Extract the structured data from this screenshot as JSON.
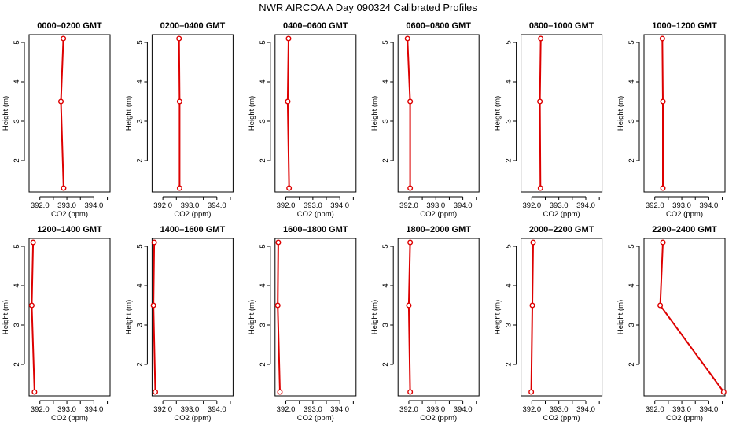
{
  "figure": {
    "title": "NWR AIRCOA A  Day 090324  Calibrated Profiles"
  },
  "colors": {
    "series": "#dd0000",
    "axis": "#000000"
  },
  "chart_data": [
    {
      "type": "line",
      "title": "0000–0200 GMT",
      "xlabel": "CO2 (ppm)",
      "ylabel": "Height (m)",
      "x": [
        392.87,
        392.78,
        392.88
      ],
      "y": [
        5.1,
        3.5,
        1.3
      ],
      "xlim": [
        391.6,
        394.6
      ],
      "ylim": [
        1.2,
        5.2
      ],
      "xticks": [
        392.0,
        393.0,
        394.0
      ],
      "xtick_labels": [
        "392.0",
        "393.0",
        "394.0"
      ],
      "yticks": [
        2,
        3,
        4,
        5
      ],
      "ytick_labels": [
        "2",
        "3",
        "4",
        "5"
      ]
    },
    {
      "type": "line",
      "title": "0200–0400 GMT",
      "xlabel": "CO2 (ppm)",
      "ylabel": "Height (m)",
      "x": [
        392.6,
        392.62,
        392.62
      ],
      "y": [
        5.1,
        3.5,
        1.3
      ],
      "xlim": [
        391.6,
        394.6
      ],
      "ylim": [
        1.2,
        5.2
      ],
      "xticks": [
        392.0,
        393.0,
        394.0
      ],
      "xtick_labels": [
        "392.0",
        "393.0",
        "394.0"
      ],
      "yticks": [
        2,
        3,
        4,
        5
      ],
      "ytick_labels": [
        "2",
        "3",
        "4",
        "5"
      ]
    },
    {
      "type": "line",
      "title": "0400–0600 GMT",
      "xlabel": "CO2 (ppm)",
      "ylabel": "Height (m)",
      "x": [
        392.1,
        392.07,
        392.12
      ],
      "y": [
        5.1,
        3.5,
        1.3
      ],
      "xlim": [
        391.6,
        394.6
      ],
      "ylim": [
        1.2,
        5.2
      ],
      "xticks": [
        392.0,
        393.0,
        394.0
      ],
      "xtick_labels": [
        "392.0",
        "393.0",
        "394.0"
      ],
      "yticks": [
        2,
        3,
        4,
        5
      ],
      "ytick_labels": [
        "2",
        "3",
        "4",
        "5"
      ]
    },
    {
      "type": "line",
      "title": "0600–0800 GMT",
      "xlabel": "CO2 (ppm)",
      "ylabel": "Height (m)",
      "x": [
        391.95,
        392.05,
        392.05
      ],
      "y": [
        5.1,
        3.5,
        1.3
      ],
      "xlim": [
        391.6,
        394.6
      ],
      "ylim": [
        1.2,
        5.2
      ],
      "xticks": [
        392.0,
        393.0,
        394.0
      ],
      "xtick_labels": [
        "392.0",
        "393.0",
        "394.0"
      ],
      "yticks": [
        2,
        3,
        4,
        5
      ],
      "ytick_labels": [
        "2",
        "3",
        "4",
        "5"
      ]
    },
    {
      "type": "line",
      "title": "0800–1000 GMT",
      "xlabel": "CO2 (ppm)",
      "ylabel": "Height (m)",
      "x": [
        392.33,
        392.3,
        392.32
      ],
      "y": [
        5.1,
        3.5,
        1.3
      ],
      "xlim": [
        391.6,
        394.6
      ],
      "ylim": [
        1.2,
        5.2
      ],
      "xticks": [
        392.0,
        393.0,
        394.0
      ],
      "xtick_labels": [
        "392.0",
        "393.0",
        "394.0"
      ],
      "yticks": [
        2,
        3,
        4,
        5
      ],
      "ytick_labels": [
        "2",
        "3",
        "4",
        "5"
      ]
    },
    {
      "type": "line",
      "title": "1000–1200 GMT",
      "xlabel": "CO2 (ppm)",
      "ylabel": "Height (m)",
      "x": [
        392.28,
        392.3,
        392.3
      ],
      "y": [
        5.1,
        3.5,
        1.3
      ],
      "xlim": [
        391.6,
        394.6
      ],
      "ylim": [
        1.2,
        5.2
      ],
      "xticks": [
        392.0,
        393.0,
        394.0
      ],
      "xtick_labels": [
        "392.0",
        "393.0",
        "394.0"
      ],
      "yticks": [
        2,
        3,
        4,
        5
      ],
      "ytick_labels": [
        "2",
        "3",
        "4",
        "5"
      ]
    },
    {
      "type": "line",
      "title": "1200–1400 GMT",
      "xlabel": "CO2 (ppm)",
      "ylabel": "Height (m)",
      "x": [
        391.75,
        391.7,
        391.8
      ],
      "y": [
        5.1,
        3.5,
        1.3
      ],
      "xlim": [
        391.6,
        394.6
      ],
      "ylim": [
        1.2,
        5.2
      ],
      "xticks": [
        392.0,
        393.0,
        394.0
      ],
      "xtick_labels": [
        "392.0",
        "393.0",
        "394.0"
      ],
      "yticks": [
        2,
        3,
        4,
        5
      ],
      "ytick_labels": [
        "2",
        "3",
        "4",
        "5"
      ]
    },
    {
      "type": "line",
      "title": "1400–1600 GMT",
      "xlabel": "CO2 (ppm)",
      "ylabel": "Height (m)",
      "x": [
        391.68,
        391.65,
        391.72
      ],
      "y": [
        5.1,
        3.5,
        1.3
      ],
      "xlim": [
        391.6,
        394.6
      ],
      "ylim": [
        1.2,
        5.2
      ],
      "xticks": [
        392.0,
        393.0,
        394.0
      ],
      "xtick_labels": [
        "392.0",
        "393.0",
        "394.0"
      ],
      "yticks": [
        2,
        3,
        4,
        5
      ],
      "ytick_labels": [
        "2",
        "3",
        "4",
        "5"
      ]
    },
    {
      "type": "line",
      "title": "1600–1800 GMT",
      "xlabel": "CO2 (ppm)",
      "ylabel": "Height (m)",
      "x": [
        391.72,
        391.7,
        391.78
      ],
      "y": [
        5.1,
        3.5,
        1.3
      ],
      "xlim": [
        391.6,
        394.6
      ],
      "ylim": [
        1.2,
        5.2
      ],
      "xticks": [
        392.0,
        393.0,
        394.0
      ],
      "xtick_labels": [
        "392.0",
        "393.0",
        "394.0"
      ],
      "yticks": [
        2,
        3,
        4,
        5
      ],
      "ytick_labels": [
        "2",
        "3",
        "4",
        "5"
      ]
    },
    {
      "type": "line",
      "title": "1800–2000 GMT",
      "xlabel": "CO2 (ppm)",
      "ylabel": "Height (m)",
      "x": [
        392.05,
        392.0,
        392.05
      ],
      "y": [
        5.1,
        3.5,
        1.3
      ],
      "xlim": [
        391.6,
        394.6
      ],
      "ylim": [
        1.2,
        5.2
      ],
      "xticks": [
        392.0,
        393.0,
        394.0
      ],
      "xtick_labels": [
        "392.0",
        "393.0",
        "394.0"
      ],
      "yticks": [
        2,
        3,
        4,
        5
      ],
      "ytick_labels": [
        "2",
        "3",
        "4",
        "5"
      ]
    },
    {
      "type": "line",
      "title": "2000–2200 GMT",
      "xlabel": "CO2 (ppm)",
      "ylabel": "Height (m)",
      "x": [
        392.05,
        392.02,
        391.98
      ],
      "y": [
        5.1,
        3.5,
        1.3
      ],
      "xlim": [
        391.6,
        394.6
      ],
      "ylim": [
        1.2,
        5.2
      ],
      "xticks": [
        392.0,
        393.0,
        394.0
      ],
      "xtick_labels": [
        "392.0",
        "393.0",
        "394.0"
      ],
      "yticks": [
        2,
        3,
        4,
        5
      ],
      "ytick_labels": [
        "2",
        "3",
        "4",
        "5"
      ]
    },
    {
      "type": "line",
      "title": "2200–2400 GMT",
      "xlabel": "CO2 (ppm)",
      "ylabel": "Height (m)",
      "x": [
        392.3,
        392.2,
        394.55
      ],
      "y": [
        5.1,
        3.5,
        1.3
      ],
      "xlim": [
        391.6,
        394.6
      ],
      "ylim": [
        1.2,
        5.2
      ],
      "xticks": [
        392.0,
        393.0,
        394.0
      ],
      "xtick_labels": [
        "392.0",
        "393.0",
        "394.0"
      ],
      "yticks": [
        2,
        3,
        4,
        5
      ],
      "ytick_labels": [
        "2",
        "3",
        "4",
        "5"
      ]
    }
  ]
}
